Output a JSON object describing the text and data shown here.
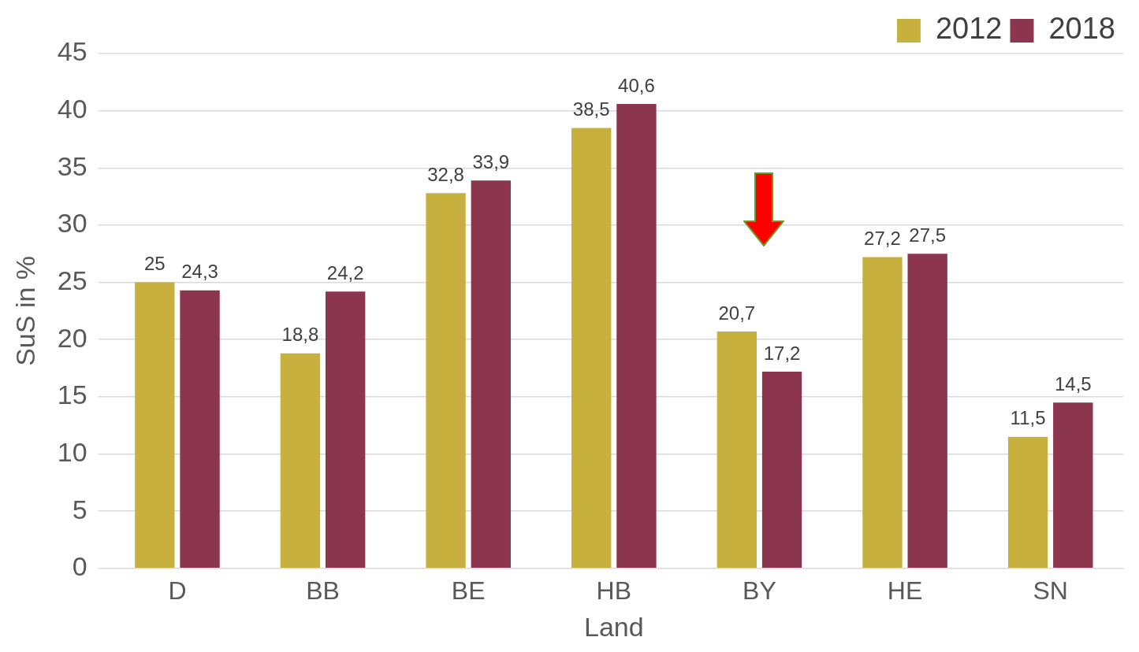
{
  "chart_data": {
    "type": "bar",
    "xlabel": "Land",
    "ylabel": "SuS in %",
    "categories": [
      "D",
      "BB",
      "BE",
      "HB",
      "BY",
      "HE",
      "SN"
    ],
    "series": [
      {
        "name": "2012",
        "color": "#c8b03f",
        "values": [
          25,
          18.8,
          32.8,
          38.5,
          20.7,
          27.2,
          11.5
        ],
        "value_labels": [
          "25",
          "18,8",
          "32,8",
          "38,5",
          "20,7",
          "27,2",
          "11,5"
        ]
      },
      {
        "name": "2018",
        "color": "#8b354f",
        "values": [
          24.3,
          24.2,
          33.9,
          40.6,
          17.2,
          27.5,
          14.5
        ],
        "value_labels": [
          "24,3",
          "24,2",
          "33,9",
          "40,6",
          "17,2",
          "27,5",
          "14,5"
        ]
      }
    ],
    "ylim": [
      0,
      45
    ],
    "yticks": [
      0,
      5,
      10,
      15,
      20,
      25,
      30,
      35,
      40,
      45
    ],
    "grid": "y",
    "legend": "top right"
  }
}
